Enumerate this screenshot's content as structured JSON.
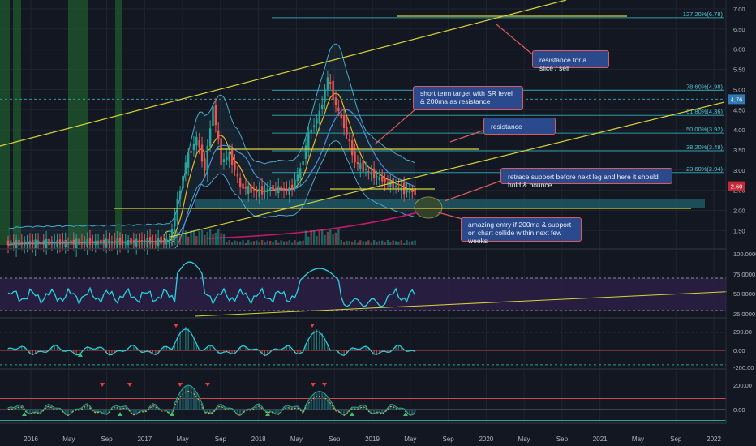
{
  "colors": {
    "background": "#131722",
    "grid": "#1e2431",
    "trendline": "#d7d23a",
    "fib_line": "#2e9ca6",
    "fib_label": "#4fc2cc",
    "candle_up": "#26a69a",
    "candle_down": "#ef5350",
    "bollinger": "#4aa8c9",
    "ma_fast": "#f0b024",
    "ma_mid": "#4d8fe0",
    "ma_200": "#c4196b",
    "rsi": "#27d3e0",
    "rsi_band": "#2a1e44",
    "osc_zero_red": "#d0494d",
    "annotation_fill": "#2a4a8d",
    "annotation_border": "#d85c5c",
    "price_badge_blue": "#2f79b4",
    "price_badge_red": "#c42a38",
    "signal_up": "#38c172",
    "signal_down": "#e23c3c",
    "highlight_green": "#1f5a2c",
    "support_zone": "#1f5863"
  },
  "chart_data": [
    {
      "panel": "price",
      "type": "candlestick",
      "y_axis_ticks": [
        "7.00",
        "6.50",
        "6.00",
        "5.50",
        "5.00",
        "4.50",
        "4.00",
        "3.50",
        "3.00",
        "2.50",
        "2.00",
        "1.50"
      ],
      "ylim": [
        1.0,
        7.2
      ],
      "x_axis_ticks": [
        "2016",
        "May",
        "Sep",
        "2017",
        "May",
        "Sep",
        "2018",
        "May",
        "Sep",
        "2019",
        "May",
        "Sep",
        "2020",
        "May",
        "Sep",
        "2021",
        "May",
        "Sep",
        "2022"
      ],
      "fib_levels": [
        {
          "label": "127.20%(6.78)",
          "value": 6.78
        },
        {
          "label": "78.60%(4.98)",
          "value": 4.98
        },
        {
          "label": "61.80%(4.36)",
          "value": 4.36
        },
        {
          "label": "50.00%(3.92)",
          "value": 3.92
        },
        {
          "label": "38.20%(3.48)",
          "value": 3.48
        },
        {
          "label": "23.60%(2.94)",
          "value": 2.94
        }
      ],
      "price_badges": [
        {
          "label": "4.76",
          "value": 4.76,
          "kind": "blue"
        },
        {
          "label": "2.60",
          "value": 2.6,
          "kind": "red"
        }
      ],
      "annotations": [
        {
          "text": "resistance for a slice / sell"
        },
        {
          "text": "short term target with SR level & 200ma as resistance"
        },
        {
          "text": "resistance"
        },
        {
          "text": "retrace support before next leg and here it should hold & bounce"
        },
        {
          "text": "amazing entry if 200ma & support on chart collide within next few weeks"
        }
      ]
    },
    {
      "panel": "rsi",
      "type": "line",
      "y_axis_ticks": [
        "100.0000",
        "75.0000",
        "50.0000",
        "25.0000"
      ],
      "ylim": [
        20,
        105
      ]
    },
    {
      "panel": "oscillator",
      "type": "histogram",
      "y_axis_ticks": [
        "200.00",
        "0.00",
        "-200.00"
      ]
    },
    {
      "panel": "wave-oscillator",
      "type": "area",
      "y_axis_ticks": [
        "200.00",
        "0.00"
      ]
    }
  ]
}
